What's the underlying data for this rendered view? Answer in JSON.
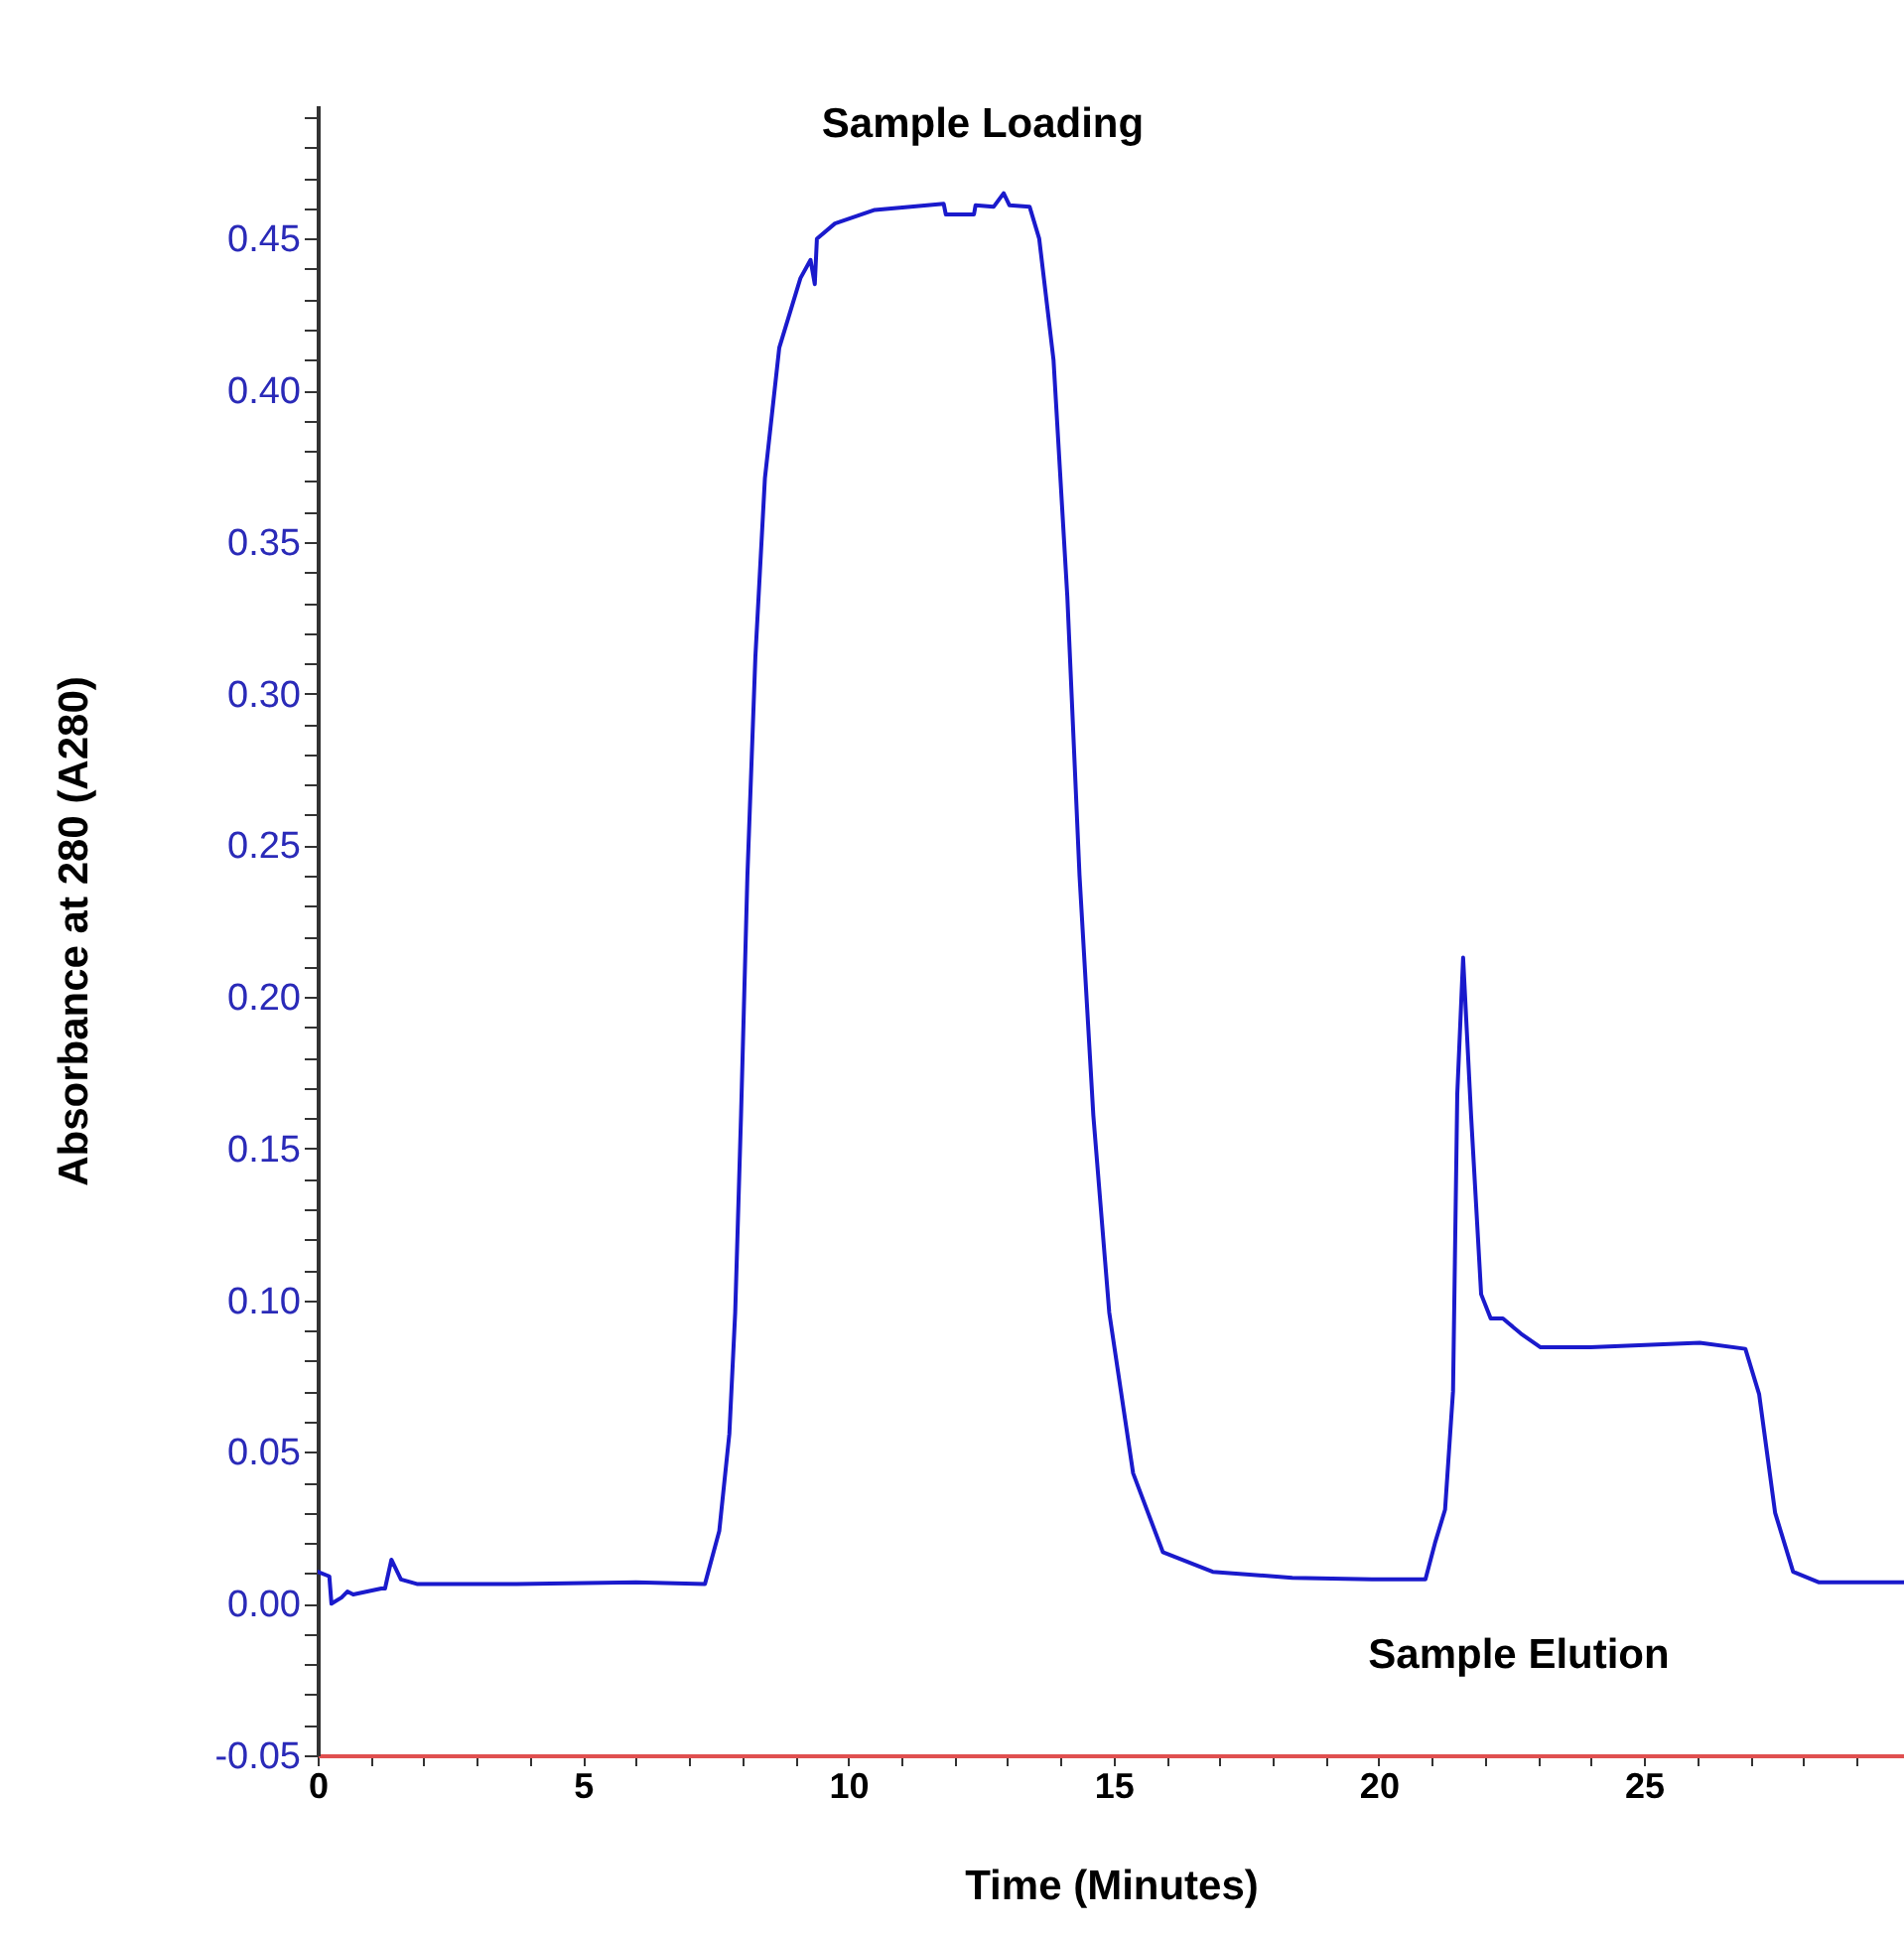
{
  "chart_data": {
    "type": "line",
    "xlabel": "Time (Minutes)",
    "ylabel": "Absorbance at 280 (A280)",
    "annotations": [
      "Sample Loading",
      "Sample Elution"
    ],
    "x": [
      0,
      0.22,
      0.26,
      0.45,
      0.56,
      0.67,
      1.2,
      1.27,
      1.39,
      1.57,
      1.87,
      3.75,
      6.0,
      7.3,
      7.57,
      7.76,
      7.87,
      7.98,
      8.1,
      8.25,
      8.43,
      8.7,
      9.1,
      9.29,
      9.37,
      9.41,
      9.75,
      10.5,
      11.8,
      11.84,
      12.37,
      12.4,
      12.74,
      12.93,
      13.04,
      13.42,
      13.6,
      13.87,
      14.13,
      14.36,
      14.62,
      14.92,
      15.37,
      15.93,
      16.87,
      18.37,
      19.87,
      20.88,
      21.06,
      21.25,
      21.4,
      21.48,
      21.59,
      21.74,
      21.93,
      22.11,
      22.34,
      22.68,
      23.05,
      23.99,
      26.05,
      26.91,
      27.17,
      27.47,
      27.81,
      28.3,
      29.9
    ],
    "series": [
      {
        "color": "#1a1acc",
        "values": [
          0.0105,
          0.009,
          0.0,
          0.002,
          0.004,
          0.003,
          0.005,
          0.005,
          0.0145,
          0.008,
          0.0065,
          0.0065,
          0.007,
          0.0065,
          0.024,
          0.056,
          0.096,
          0.161,
          0.24,
          0.312,
          0.371,
          0.414,
          0.437,
          0.443,
          0.435,
          0.45,
          0.455,
          0.4595,
          0.4615,
          0.458,
          0.458,
          0.461,
          0.4605,
          0.465,
          0.461,
          0.4605,
          0.45,
          0.41,
          0.332,
          0.24,
          0.161,
          0.096,
          0.043,
          0.017,
          0.0105,
          0.0085,
          0.008,
          0.008,
          0.02,
          0.031,
          0.07,
          0.168,
          0.213,
          0.161,
          0.102,
          0.094,
          0.094,
          0.089,
          0.0845,
          0.0845,
          0.086,
          0.084,
          0.069,
          0.03,
          0.0105,
          0.007,
          0.007
        ]
      }
    ],
    "xlim": [
      0,
      29.9
    ],
    "xticks": [
      0,
      {
        "value": 1,
        "label": null
      },
      {
        "value": 2,
        "label": null
      },
      {
        "value": 3,
        "label": null
      },
      {
        "value": 4,
        "label": null
      },
      5,
      {
        "value": 6,
        "label": null
      },
      {
        "value": 7,
        "label": null
      },
      {
        "value": 8,
        "label": null
      },
      {
        "value": 9,
        "label": null
      },
      10,
      {
        "value": 11,
        "label": null
      },
      {
        "value": 12,
        "label": null
      },
      {
        "value": 13,
        "label": null
      },
      {
        "value": 14,
        "label": null
      },
      15,
      {
        "value": 16,
        "label": null
      },
      {
        "value": 17,
        "label": null
      },
      {
        "value": 18,
        "label": null
      },
      {
        "value": 19,
        "label": null
      },
      20,
      {
        "value": 21,
        "label": null
      },
      {
        "value": 22,
        "label": null
      },
      {
        "value": 23,
        "label": null
      },
      {
        "value": 24,
        "label": null
      },
      25,
      {
        "value": 26,
        "label": null
      },
      {
        "value": 27,
        "label": null
      },
      {
        "value": 28,
        "label": null
      },
      {
        "value": 29,
        "label": null
      }
    ],
    "ylim": [
      -0.05,
      0.494
    ],
    "yticks": [
      {
        "value": -0.05,
        "label": "-0.05"
      },
      {
        "value": -0.04,
        "label": null
      },
      {
        "value": -0.03,
        "label": null
      },
      {
        "value": -0.02,
        "label": null
      },
      {
        "value": -0.01,
        "label": null
      },
      {
        "value": 0,
        "label": "0.00"
      },
      {
        "value": 0.01,
        "label": null
      },
      {
        "value": 0.02,
        "label": null
      },
      {
        "value": 0.03,
        "label": null
      },
      {
        "value": 0.04,
        "label": null
      },
      {
        "value": 0.05,
        "label": "0.05"
      },
      {
        "value": 0.06,
        "label": null
      },
      {
        "value": 0.07,
        "label": null
      },
      {
        "value": 0.08,
        "label": null
      },
      {
        "value": 0.09,
        "label": null
      },
      {
        "value": 0.1,
        "label": "0.10"
      },
      {
        "value": 0.11,
        "label": null
      },
      {
        "value": 0.12,
        "label": null
      },
      {
        "value": 0.13,
        "label": null
      },
      {
        "value": 0.14,
        "label": null
      },
      {
        "value": 0.15,
        "label": "0.15"
      },
      {
        "value": 0.16,
        "label": null
      },
      {
        "value": 0.17,
        "label": null
      },
      {
        "value": 0.18,
        "label": null
      },
      {
        "value": 0.19,
        "label": null
      },
      {
        "value": 0.2,
        "label": "0.20"
      },
      {
        "value": 0.21,
        "label": null
      },
      {
        "value": 0.22,
        "label": null
      },
      {
        "value": 0.23,
        "label": null
      },
      {
        "value": 0.24,
        "label": null
      },
      {
        "value": 0.25,
        "label": "0.25"
      },
      {
        "value": 0.26,
        "label": null
      },
      {
        "value": 0.27,
        "label": null
      },
      {
        "value": 0.28,
        "label": null
      },
      {
        "value": 0.29,
        "label": null
      },
      {
        "value": 0.3,
        "label": "0.30"
      },
      {
        "value": 0.31,
        "label": null
      },
      {
        "value": 0.32,
        "label": null
      },
      {
        "value": 0.33,
        "label": null
      },
      {
        "value": 0.34,
        "label": null
      },
      {
        "value": 0.35,
        "label": "0.35"
      },
      {
        "value": 0.36,
        "label": null
      },
      {
        "value": 0.37,
        "label": null
      },
      {
        "value": 0.38,
        "label": null
      },
      {
        "value": 0.39,
        "label": null
      },
      {
        "value": 0.4,
        "label": "0.40"
      },
      {
        "value": 0.41,
        "label": null
      },
      {
        "value": 0.42,
        "label": null
      },
      {
        "value": 0.43,
        "label": null
      },
      {
        "value": 0.44,
        "label": null
      },
      {
        "value": 0.45,
        "label": "0.45"
      },
      {
        "value": 0.46,
        "label": null
      },
      {
        "value": 0.47,
        "label": null
      },
      {
        "value": 0.48,
        "label": null
      },
      {
        "value": 0.49,
        "label": null
      }
    ],
    "grid": false,
    "marker": "none",
    "line_style": "solid"
  }
}
